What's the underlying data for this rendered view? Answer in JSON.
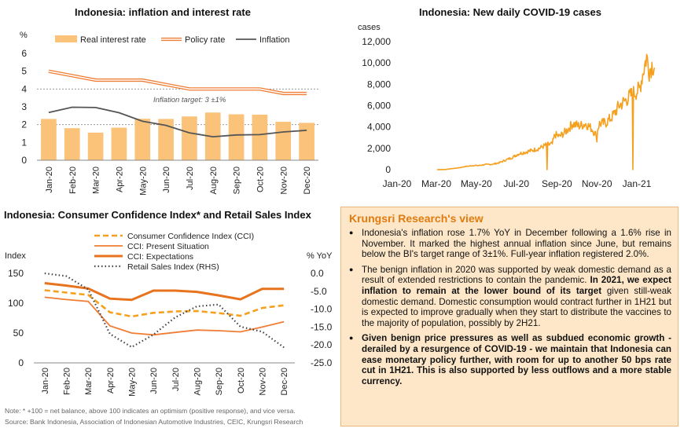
{
  "chart_data": [
    {
      "type": "bar",
      "title": "Indonesia: inflation and interest rate",
      "ylabel": "%",
      "ylim": [
        0,
        6
      ],
      "yticks": [
        0,
        1,
        2,
        3,
        4,
        5,
        6
      ],
      "categories": [
        "Jan-20",
        "Feb-20",
        "Mar-20",
        "Apr-20",
        "May-20",
        "Jun-20",
        "Jul-20",
        "Aug-20",
        "Sep-20",
        "Oct-20",
        "Nov-20",
        "Dec-20"
      ],
      "series": [
        {
          "name": "Real interest rate",
          "kind": "bar",
          "color": "#fbc27a",
          "values": [
            2.32,
            1.8,
            1.55,
            1.83,
            2.33,
            2.32,
            2.46,
            2.68,
            2.58,
            2.56,
            2.16,
            2.1
          ]
        },
        {
          "name": "Policy rate",
          "kind": "line-double",
          "color": "#f07d34",
          "values": [
            5.0,
            4.75,
            4.5,
            4.5,
            4.5,
            4.25,
            4.0,
            4.0,
            4.0,
            4.0,
            3.75,
            3.75
          ]
        },
        {
          "name": "Inflation",
          "kind": "line",
          "color": "#555555",
          "values": [
            2.68,
            2.98,
            2.96,
            2.67,
            2.19,
            1.96,
            1.54,
            1.32,
            1.42,
            1.44,
            1.59,
            1.68
          ]
        }
      ],
      "annotation": "Inflation target: 3 ±1%",
      "reference_lines": [
        4,
        2
      ]
    },
    {
      "type": "line",
      "title": "Indonesia: New daily COVID-19 cases",
      "ylabel": "cases",
      "ylim": [
        0,
        12000
      ],
      "yticks": [
        0,
        2000,
        4000,
        6000,
        8000,
        10000,
        12000
      ],
      "ytick_labels": [
        "0",
        "2,000",
        "4,000",
        "6,000",
        "8,000",
        "10,000",
        "12,000"
      ],
      "xticks": [
        "Jan-20",
        "Mar-20",
        "May-20",
        "Jul-20",
        "Sep-20",
        "Nov-20",
        "Jan-21"
      ],
      "x_start": "2020-01-01",
      "x_end": "2021-01-31",
      "color": "#f5a01f",
      "points": [
        [
          "2020-03-02",
          2
        ],
        [
          "2020-03-15",
          17
        ],
        [
          "2020-03-25",
          100
        ],
        [
          "2020-04-05",
          180
        ],
        [
          "2020-04-15",
          300
        ],
        [
          "2020-04-25",
          380
        ],
        [
          "2020-05-05",
          390
        ],
        [
          "2020-05-15",
          480
        ],
        [
          "2020-05-25",
          500
        ],
        [
          "2020-06-05",
          650
        ],
        [
          "2020-06-15",
          900
        ],
        [
          "2020-06-25",
          1150
        ],
        [
          "2020-07-05",
          1500
        ],
        [
          "2020-07-15",
          1650
        ],
        [
          "2020-07-25",
          1800
        ],
        [
          "2020-08-05",
          2000
        ],
        [
          "2020-08-15",
          2300
        ],
        [
          "2020-08-25",
          2400
        ],
        [
          "2020-08-29",
          3300
        ],
        [
          "2020-09-05",
          3100
        ],
        [
          "2020-09-15",
          3600
        ],
        [
          "2020-09-25",
          4300
        ],
        [
          "2020-10-05",
          4100
        ],
        [
          "2020-10-15",
          4300
        ],
        [
          "2020-10-25",
          3800
        ],
        [
          "2020-10-30",
          3300
        ],
        [
          "2020-11-05",
          4300
        ],
        [
          "2020-11-15",
          4400
        ],
        [
          "2020-11-25",
          5000
        ],
        [
          "2020-12-05",
          6000
        ],
        [
          "2020-12-15",
          6500
        ],
        [
          "2020-12-25",
          7100
        ],
        [
          "2021-01-05",
          7500
        ],
        [
          "2021-01-10",
          9000
        ],
        [
          "2021-01-16",
          10600
        ],
        [
          "2021-01-20",
          9300
        ],
        [
          "2021-01-24",
          9800
        ],
        [
          "2021-01-28",
          9700
        ]
      ],
      "dips": [
        [
          "2020-08-17",
          0
        ],
        [
          "2020-11-01",
          2600
        ],
        [
          "2020-12-26",
          0
        ]
      ]
    },
    {
      "type": "line",
      "title": "Indonesia: Consumer Confidence Index* and Retail Sales Index",
      "ylabel_left": "Index",
      "ylabel_right": "% YoY",
      "ylim_left": [
        0,
        150
      ],
      "yticks_left": [
        0,
        50,
        100,
        150
      ],
      "ylim_right": [
        -25,
        0
      ],
      "yticks_right": [
        "0.0",
        "-5.0",
        "-10.0",
        "-15.0",
        "-20.0",
        "-25.0"
      ],
      "categories": [
        "Jan-20",
        "Feb-20",
        "Mar-20",
        "Apr-20",
        "May-20",
        "Jun-20",
        "Jul-20",
        "Aug-20",
        "Sep-20",
        "Oct-20",
        "Nov-20",
        "Dec-20"
      ],
      "series": [
        {
          "name": "Consumer Confidence Index (CCI)",
          "axis": "left",
          "style": "dash",
          "color": "#f5a01f",
          "values": [
            121.7,
            117.7,
            113.8,
            84.8,
            77.8,
            83.8,
            86.2,
            86.9,
            83.4,
            79.0,
            92.0,
            96.5
          ]
        },
        {
          "name": "CCI: Present Situation",
          "axis": "left",
          "style": "thin",
          "color": "#f07d34",
          "values": [
            110.0,
            106.0,
            103.0,
            62.0,
            50.0,
            47.0,
            51.0,
            55.0,
            54.0,
            52.0,
            60.0,
            69.0
          ]
        },
        {
          "name": "CCI: Expectations",
          "axis": "left",
          "style": "thick",
          "color": "#e8731e",
          "values": [
            133.5,
            129.5,
            124.6,
            107.6,
            105.6,
            121.0,
            121.0,
            119.0,
            113.0,
            106.4,
            124.0,
            124.0
          ]
        },
        {
          "name": "Retail Sales Index (RHS)",
          "axis": "right",
          "style": "dot",
          "color": "#444444",
          "values": [
            0.0,
            -0.8,
            -4.5,
            -16.9,
            -20.6,
            -17.1,
            -12.3,
            -9.2,
            -8.7,
            -14.9,
            -16.3,
            -20.7
          ]
        }
      ]
    }
  ],
  "view": {
    "title": "Krungsri Research's view",
    "bullets": [
      [
        {
          "t": "Indonesia's inflation rose 1.7% YoY in December following a 1.6% rise in November. It marked the highest annual inflation since June, but remains below the BI's target range of 3±1%. Full-year inflation registered 2.0%.",
          "b": false
        }
      ],
      [
        {
          "t": "The benign inflation in 2020 was supported by weak domestic demand as a result of extended restrictions to contain the pandemic. ",
          "b": false
        },
        {
          "t": "In 2021, we expect inflation to remain at the lower bound of its target",
          "b": true
        },
        {
          "t": " given still-weak domestic demand. Domestic consumption would contract further in 1H21 but is expected to improve gradually when they start to distribute the vaccines to the majority of population, possibly by 2H21.",
          "b": false
        }
      ],
      [
        {
          "t": "Given benign price pressures as well as subdued economic growth - derailed by a resurgence of COVID-19 - we maintain that Indonesia can ease monetary policy further, with room for up to another 50 bps rate cut in 1H21. This is also supported by less outflows and a more stable currency.",
          "b": true
        }
      ]
    ]
  },
  "footnote": "Note: * +100 = net balance, above 100 indicates an optimism (positive response), and vice versa.",
  "source": "Source: Bank Indonesia, Association of Indonesian Automotive Industries, CEIC, Krungsri Research"
}
